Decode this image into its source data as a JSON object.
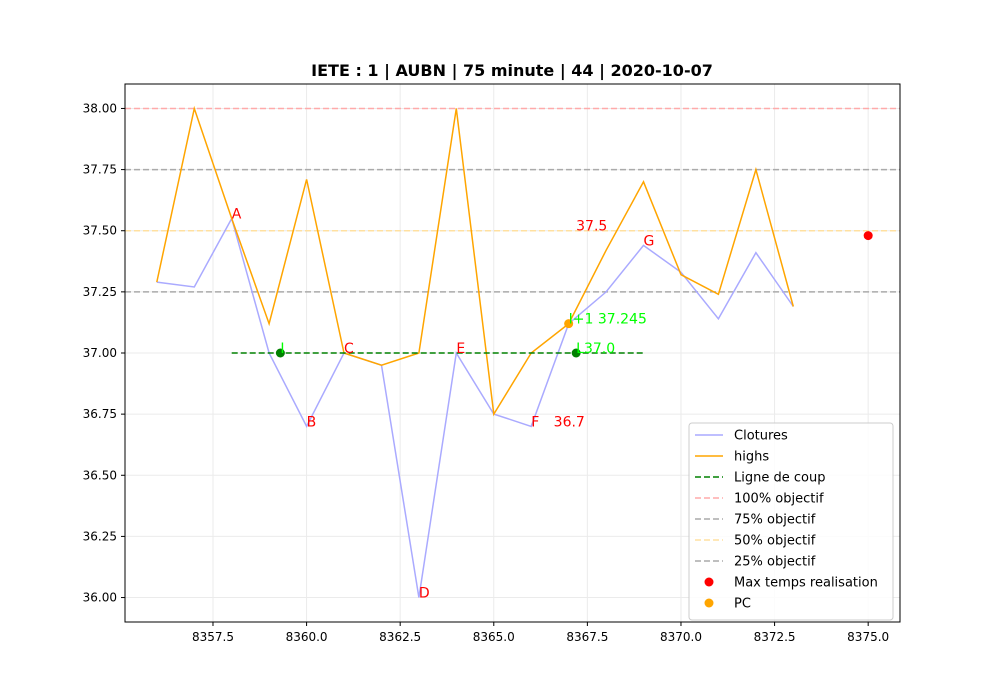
{
  "chart_data": {
    "type": "line",
    "title": "IETE : 1 | AUBN | 75 minute | 44 | 2020-10-07",
    "xlabel": "",
    "ylabel": "",
    "xlim": [
      8355.15,
      8375.85
    ],
    "ylim": [
      35.9,
      38.1
    ],
    "x_ticks": [
      8357.5,
      8360.0,
      8362.5,
      8365.0,
      8367.5,
      8370.0,
      8372.5,
      8375.0
    ],
    "x_tick_labels": [
      "8357.5",
      "8360.0",
      "8362.5",
      "8365.0",
      "8367.5",
      "8370.0",
      "8372.5",
      "8375.0"
    ],
    "y_ticks": [
      36.0,
      36.25,
      36.5,
      36.75,
      37.0,
      37.25,
      37.5,
      37.75,
      38.0
    ],
    "y_tick_labels": [
      "36.00",
      "36.25",
      "36.50",
      "36.75",
      "37.00",
      "37.25",
      "37.50",
      "37.75",
      "38.00"
    ],
    "grid": true,
    "legend_position": "bottom-right",
    "series": [
      {
        "name": "Clotures",
        "kind": "line",
        "color": "#aaaaff",
        "x": [
          8356,
          8357,
          8358,
          8359,
          8360,
          8361,
          8362,
          8363,
          8364,
          8365,
          8366,
          8367,
          8368,
          8369,
          8370,
          8371,
          8372,
          8373
        ],
        "y": [
          37.29,
          37.27,
          37.55,
          37.0,
          36.7,
          37.0,
          36.95,
          36.0,
          37.0,
          36.75,
          36.7,
          37.12,
          37.25,
          37.44,
          37.33,
          37.14,
          37.41,
          37.19
        ]
      },
      {
        "name": "highs",
        "kind": "line",
        "color": "#ffa500",
        "x": [
          8356,
          8357,
          8358,
          8359,
          8360,
          8361,
          8362,
          8363,
          8364,
          8365,
          8366,
          8367,
          8368,
          8369,
          8370,
          8371,
          8372,
          8373
        ],
        "y": [
          37.29,
          38.0,
          37.55,
          37.12,
          37.71,
          37.0,
          36.95,
          37.0,
          38.0,
          36.75,
          37.0,
          37.12,
          37.42,
          37.7,
          37.32,
          37.24,
          37.75,
          37.19
        ]
      },
      {
        "name": "Ligne de coup",
        "kind": "segment",
        "color": "#008000",
        "dash": "dashed",
        "x": [
          8358,
          8369
        ],
        "y": [
          37.0,
          37.0
        ]
      },
      {
        "name": "100% objectif",
        "kind": "hline",
        "color": "#ffaaaa",
        "dash": "dashed",
        "y": 38.0
      },
      {
        "name": "75% objectif",
        "kind": "hline",
        "color": "#aaaaaa",
        "dash": "dashed",
        "y": 37.75
      },
      {
        "name": "50% objectif",
        "kind": "hline",
        "color": "#ffe0a0",
        "dash": "dashed",
        "y": 37.5
      },
      {
        "name": "25% objectif",
        "kind": "hline",
        "color": "#aaaaaa",
        "dash": "dashed",
        "y": 37.25
      },
      {
        "name": "Max temps realisation",
        "kind": "scatter",
        "color": "#ff0000",
        "points": [
          {
            "x": 8375,
            "y": 37.48
          }
        ]
      },
      {
        "name": "PC",
        "kind": "scatter",
        "color": "#ffa500",
        "points": [
          {
            "x": 8367,
            "y": 37.12
          }
        ]
      },
      {
        "name": "",
        "kind": "scatter",
        "color": "#008000",
        "points": [
          {
            "x": 8359.3,
            "y": 37.0
          },
          {
            "x": 8367.2,
            "y": 37.0
          }
        ]
      }
    ],
    "annotations": [
      {
        "text": "A",
        "x": 8358,
        "y": 37.55,
        "color": "#ff0000"
      },
      {
        "text": "B",
        "x": 8360,
        "y": 36.7,
        "color": "#ff0000"
      },
      {
        "text": "C",
        "x": 8361,
        "y": 37.0,
        "color": "#ff0000"
      },
      {
        "text": "D",
        "x": 8363,
        "y": 36.0,
        "color": "#ff0000"
      },
      {
        "text": "E",
        "x": 8364,
        "y": 37.0,
        "color": "#ff0000"
      },
      {
        "text": "F",
        "x": 8366,
        "y": 36.7,
        "color": "#ff0000"
      },
      {
        "text": "36.7",
        "x": 8366.6,
        "y": 36.7,
        "color": "#ff0000"
      },
      {
        "text": "G",
        "x": 8369,
        "y": 37.44,
        "color": "#ff0000"
      },
      {
        "text": "37.5",
        "x": 8367.2,
        "y": 37.5,
        "color": "#ff0000"
      },
      {
        "text": "I",
        "x": 8359.3,
        "y": 37.0,
        "color": "#00ff00"
      },
      {
        "text": "I+1 37.245",
        "x": 8367,
        "y": 37.12,
        "color": "#00ff00"
      },
      {
        "text": "L37.0",
        "x": 8367.2,
        "y": 37.0,
        "color": "#00ff00"
      }
    ]
  }
}
